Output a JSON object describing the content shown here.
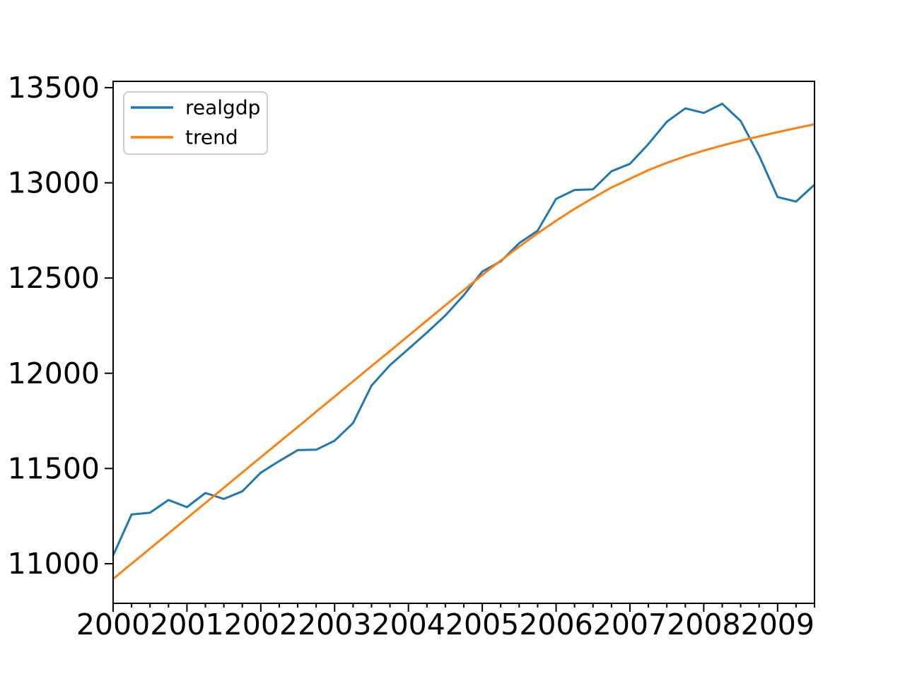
{
  "figure": {
    "background": "#ffffff",
    "axis_color": "#000000",
    "legend_border_color": "#cccccc"
  },
  "chart_data": {
    "type": "line",
    "title": "",
    "xlabel": "",
    "ylabel": "",
    "grid": false,
    "legend_position": "upper left",
    "x_tick_labels": [
      "2000",
      "2001",
      "2002",
      "2003",
      "2004",
      "2005",
      "2006",
      "2007",
      "2008",
      "2009"
    ],
    "minor_ticks_x": "quarterly",
    "y_ticks": [
      11000,
      11500,
      12000,
      12500,
      13000,
      13500
    ],
    "ylim": [
      10792,
      13533
    ],
    "x_range": [
      "2000Q1",
      "2009Q3"
    ],
    "x": [
      "2000Q1",
      "2000Q2",
      "2000Q3",
      "2000Q4",
      "2001Q1",
      "2001Q2",
      "2001Q3",
      "2001Q4",
      "2002Q1",
      "2002Q2",
      "2002Q3",
      "2002Q4",
      "2003Q1",
      "2003Q2",
      "2003Q3",
      "2003Q4",
      "2004Q1",
      "2004Q2",
      "2004Q3",
      "2004Q4",
      "2005Q1",
      "2005Q2",
      "2005Q3",
      "2005Q4",
      "2006Q1",
      "2006Q2",
      "2006Q3",
      "2006Q4",
      "2007Q1",
      "2007Q2",
      "2007Q3",
      "2007Q4",
      "2008Q1",
      "2008Q2",
      "2008Q3",
      "2008Q4",
      "2009Q1",
      "2009Q2",
      "2009Q3"
    ],
    "series": [
      {
        "name": "realgdp",
        "color": "#1f77b4",
        "values": [
          11043.0,
          11258.5,
          11267.9,
          11334.5,
          11297.2,
          11371.3,
          11340.1,
          11380.1,
          11477.9,
          11538.8,
          11596.4,
          11598.8,
          11645.8,
          11738.7,
          11935.5,
          12042.8,
          12127.6,
          12213.8,
          12303.5,
          12410.3,
          12534.1,
          12587.5,
          12683.2,
          12748.7,
          12915.9,
          12962.5,
          12965.9,
          13060.7,
          13099.9,
          13204.0,
          13321.1,
          13391.2,
          13366.9,
          13415.3,
          13324.6,
          13141.9,
          12925.4,
          12901.5,
          12990.3
        ]
      },
      {
        "name": "trend",
        "color": "#ff7f0e",
        "values": [
          10920,
          11000,
          11080,
          11159,
          11239,
          11319,
          11399,
          11479,
          11559,
          11638,
          11718,
          11798,
          11878,
          11958,
          12038,
          12117,
          12197,
          12277,
          12357,
          12437,
          12516,
          12592,
          12665,
          12735,
          12801,
          12863,
          12921,
          12975,
          13021,
          13067,
          13105,
          13139,
          13169,
          13196,
          13221,
          13244,
          13266,
          13287,
          13308
        ]
      }
    ]
  }
}
